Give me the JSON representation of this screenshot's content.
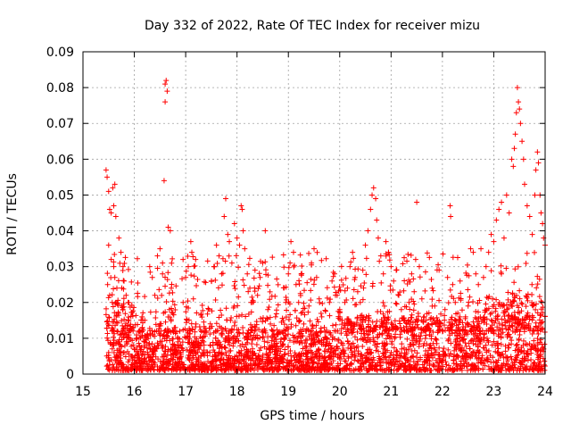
{
  "chart_data": {
    "type": "scatter",
    "title": "Day 332 of 2022, Rate Of TEC Index for receiver mizu",
    "xlabel": "GPS time / hours",
    "ylabel": "ROTI / TECUs",
    "xlim": [
      15,
      24
    ],
    "ylim": [
      0,
      0.09
    ],
    "x_ticks": [
      "15",
      "16",
      "17",
      "18",
      "19",
      "20",
      "21",
      "22",
      "23",
      "24"
    ],
    "y_ticks": [
      "0",
      "0.01",
      "0.02",
      "0.03",
      "0.04",
      "0.05",
      "0.06",
      "0.07",
      "0.08",
      "0.09"
    ],
    "grid": true,
    "marker": "plus",
    "color": "#ff0000",
    "series": [
      {
        "points": [
          [
            15.45,
            0.057
          ],
          [
            15.47,
            0.055
          ],
          [
            15.5,
            0.051
          ],
          [
            15.52,
            0.046
          ],
          [
            15.55,
            0.045
          ],
          [
            15.58,
            0.052
          ],
          [
            15.6,
            0.047
          ],
          [
            15.62,
            0.053
          ],
          [
            15.64,
            0.044
          ],
          [
            15.5,
            0.036
          ],
          [
            15.55,
            0.032
          ],
          [
            15.6,
            0.03
          ],
          [
            15.48,
            0.025
          ],
          [
            15.52,
            0.022
          ],
          [
            15.57,
            0.02
          ],
          [
            15.62,
            0.027
          ],
          [
            15.66,
            0.024
          ],
          [
            15.7,
            0.038
          ],
          [
            15.74,
            0.034
          ],
          [
            15.78,
            0.03
          ],
          [
            15.8,
            0.026
          ],
          [
            15.84,
            0.022
          ],
          [
            15.88,
            0.02
          ],
          [
            15.5,
            0.006
          ],
          [
            15.55,
            0.004
          ],
          [
            15.6,
            0.008
          ],
          [
            15.65,
            0.005
          ],
          [
            15.7,
            0.007
          ],
          [
            15.75,
            0.003
          ],
          [
            15.8,
            0.006
          ],
          [
            15.85,
            0.009
          ],
          [
            15.9,
            0.004
          ],
          [
            15.95,
            0.005
          ],
          [
            16.0,
            0.007
          ],
          [
            16.05,
            0.01
          ],
          [
            16.1,
            0.012
          ],
          [
            16.15,
            0.016
          ],
          [
            16.2,
            0.009
          ],
          [
            16.25,
            0.011
          ],
          [
            16.3,
            0.03
          ],
          [
            16.35,
            0.027
          ],
          [
            16.4,
            0.022
          ],
          [
            16.45,
            0.033
          ],
          [
            16.5,
            0.035
          ],
          [
            16.55,
            0.031
          ],
          [
            16.58,
            0.054
          ],
          [
            16.6,
            0.081
          ],
          [
            16.6,
            0.076
          ],
          [
            16.62,
            0.082
          ],
          [
            16.64,
            0.079
          ],
          [
            16.66,
            0.041
          ],
          [
            16.7,
            0.04
          ],
          [
            16.72,
            0.024
          ],
          [
            16.75,
            0.017
          ],
          [
            16.8,
            0.013
          ],
          [
            16.85,
            0.009
          ],
          [
            16.9,
            0.006
          ],
          [
            16.95,
            0.02
          ],
          [
            17.0,
            0.027
          ],
          [
            17.05,
            0.03
          ],
          [
            17.1,
            0.037
          ],
          [
            17.12,
            0.034
          ],
          [
            17.15,
            0.021
          ],
          [
            17.2,
            0.014
          ],
          [
            17.25,
            0.008
          ],
          [
            17.3,
            0.005
          ],
          [
            17.35,
            0.009
          ],
          [
            17.4,
            0.012
          ],
          [
            17.45,
            0.018
          ],
          [
            17.5,
            0.026
          ],
          [
            17.55,
            0.03
          ],
          [
            17.6,
            0.036
          ],
          [
            17.65,
            0.033
          ],
          [
            17.7,
            0.028
          ],
          [
            17.75,
            0.044
          ],
          [
            17.78,
            0.049
          ],
          [
            17.82,
            0.039
          ],
          [
            17.85,
            0.037
          ],
          [
            17.9,
            0.031
          ],
          [
            17.95,
            0.042
          ],
          [
            18.0,
            0.038
          ],
          [
            18.05,
            0.036
          ],
          [
            18.08,
            0.047
          ],
          [
            18.1,
            0.046
          ],
          [
            18.12,
            0.04
          ],
          [
            18.15,
            0.035
          ],
          [
            18.2,
            0.028
          ],
          [
            18.25,
            0.024
          ],
          [
            18.3,
            0.02
          ],
          [
            18.35,
            0.029
          ],
          [
            18.4,
            0.022
          ],
          [
            18.45,
            0.027
          ],
          [
            18.5,
            0.031
          ],
          [
            18.55,
            0.04
          ],
          [
            18.6,
            0.018
          ],
          [
            18.65,
            0.014
          ],
          [
            18.7,
            0.012
          ],
          [
            18.75,
            0.016
          ],
          [
            18.8,
            0.011
          ],
          [
            18.85,
            0.009
          ],
          [
            18.9,
            0.015
          ],
          [
            18.95,
            0.02
          ],
          [
            19.0,
            0.028
          ],
          [
            19.05,
            0.037
          ],
          [
            19.1,
            0.034
          ],
          [
            19.15,
            0.025
          ],
          [
            19.2,
            0.02
          ],
          [
            19.25,
            0.017
          ],
          [
            19.3,
            0.014
          ],
          [
            19.35,
            0.012
          ],
          [
            19.4,
            0.019
          ],
          [
            19.45,
            0.031
          ],
          [
            19.5,
            0.035
          ],
          [
            19.55,
            0.027
          ],
          [
            19.6,
            0.021
          ],
          [
            19.65,
            0.016
          ],
          [
            19.7,
            0.013
          ],
          [
            19.75,
            0.01
          ],
          [
            19.8,
            0.02
          ],
          [
            19.85,
            0.026
          ],
          [
            19.9,
            0.028
          ],
          [
            19.95,
            0.022
          ],
          [
            20.0,
            0.018
          ],
          [
            20.05,
            0.015
          ],
          [
            20.1,
            0.02
          ],
          [
            20.15,
            0.024
          ],
          [
            20.2,
            0.03
          ],
          [
            20.25,
            0.034
          ],
          [
            20.3,
            0.027
          ],
          [
            20.35,
            0.023
          ],
          [
            20.4,
            0.02
          ],
          [
            20.45,
            0.029
          ],
          [
            20.5,
            0.036
          ],
          [
            20.55,
            0.04
          ],
          [
            20.6,
            0.046
          ],
          [
            20.63,
            0.05
          ],
          [
            20.66,
            0.052
          ],
          [
            20.7,
            0.049
          ],
          [
            20.72,
            0.043
          ],
          [
            20.75,
            0.038
          ],
          [
            20.8,
            0.033
          ],
          [
            20.85,
            0.028
          ],
          [
            20.9,
            0.037
          ],
          [
            20.95,
            0.034
          ],
          [
            21.0,
            0.03
          ],
          [
            21.05,
            0.026
          ],
          [
            21.1,
            0.029
          ],
          [
            21.15,
            0.022
          ],
          [
            21.2,
            0.018
          ],
          [
            21.25,
            0.015
          ],
          [
            21.3,
            0.012
          ],
          [
            21.35,
            0.02
          ],
          [
            21.4,
            0.028
          ],
          [
            21.45,
            0.023
          ],
          [
            21.5,
            0.048
          ],
          [
            21.55,
            0.03
          ],
          [
            21.6,
            0.021
          ],
          [
            21.65,
            0.016
          ],
          [
            21.7,
            0.013
          ],
          [
            21.75,
            0.011
          ],
          [
            21.8,
            0.024
          ],
          [
            21.85,
            0.019
          ],
          [
            21.9,
            0.015
          ],
          [
            21.95,
            0.013
          ],
          [
            22.0,
            0.012
          ],
          [
            22.05,
            0.018
          ],
          [
            22.1,
            0.027
          ],
          [
            22.15,
            0.047
          ],
          [
            22.16,
            0.044
          ],
          [
            22.2,
            0.025
          ],
          [
            22.25,
            0.02
          ],
          [
            22.3,
            0.017
          ],
          [
            22.35,
            0.015
          ],
          [
            22.4,
            0.012
          ],
          [
            22.45,
            0.016
          ],
          [
            22.5,
            0.019
          ],
          [
            22.55,
            0.035
          ],
          [
            22.6,
            0.034
          ],
          [
            22.65,
            0.028
          ],
          [
            22.7,
            0.025
          ],
          [
            22.75,
            0.035
          ],
          [
            22.8,
            0.027
          ],
          [
            22.85,
            0.03
          ],
          [
            22.9,
            0.034
          ],
          [
            22.95,
            0.039
          ],
          [
            23.0,
            0.037
          ],
          [
            23.05,
            0.043
          ],
          [
            23.1,
            0.046
          ],
          [
            23.15,
            0.048
          ],
          [
            23.2,
            0.038
          ],
          [
            23.25,
            0.05
          ],
          [
            23.3,
            0.045
          ],
          [
            23.35,
            0.06
          ],
          [
            23.38,
            0.058
          ],
          [
            23.4,
            0.063
          ],
          [
            23.42,
            0.067
          ],
          [
            23.44,
            0.073
          ],
          [
            23.46,
            0.08
          ],
          [
            23.48,
            0.076
          ],
          [
            23.5,
            0.074
          ],
          [
            23.52,
            0.07
          ],
          [
            23.55,
            0.065
          ],
          [
            23.58,
            0.06
          ],
          [
            23.6,
            0.053
          ],
          [
            23.65,
            0.047
          ],
          [
            23.7,
            0.044
          ],
          [
            23.75,
            0.039
          ],
          [
            23.8,
            0.05
          ],
          [
            23.82,
            0.057
          ],
          [
            23.85,
            0.062
          ],
          [
            23.87,
            0.059
          ],
          [
            23.9,
            0.05
          ],
          [
            23.92,
            0.045
          ],
          [
            23.95,
            0.042
          ],
          [
            23.97,
            0.038
          ],
          [
            24.0,
            0.036
          ]
        ]
      }
    ],
    "baseline_band": {
      "x_range": [
        15.45,
        24.0
      ],
      "y_range": [
        0.001,
        0.015
      ],
      "note": ""
    }
  }
}
